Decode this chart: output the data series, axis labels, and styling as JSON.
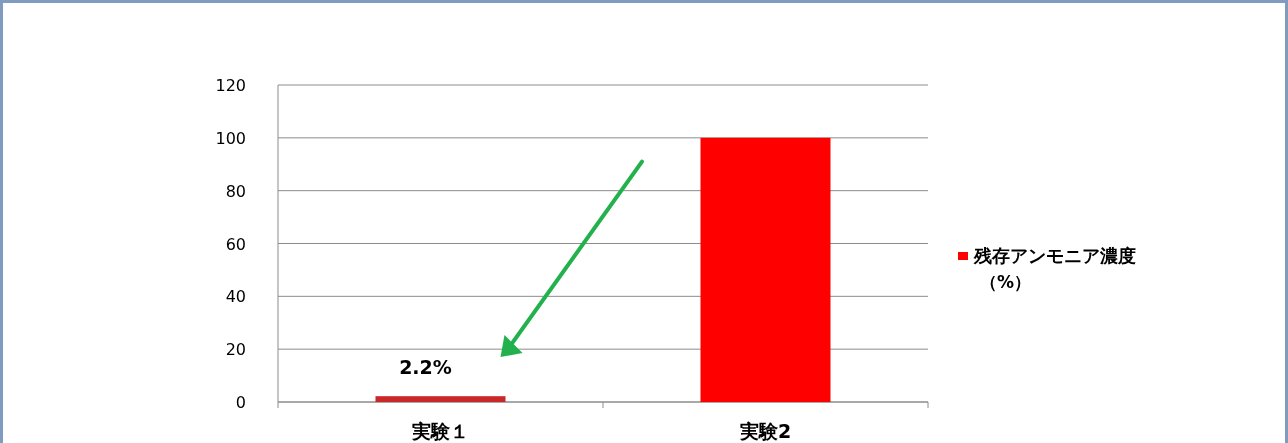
{
  "chart_data": {
    "type": "bar",
    "categories": [
      "実験１",
      "実験2"
    ],
    "series": [
      {
        "name": "残存アンモニア濃度（%）",
        "color": "#ff0000",
        "colors": [
          "#c8282a",
          "#ff0000"
        ],
        "values": [
          2.2,
          100
        ],
        "value_labels": [
          "2.2%",
          null
        ]
      }
    ],
    "ylim": [
      0,
      120
    ],
    "yticks": [
      0,
      20,
      40,
      60,
      80,
      100,
      120
    ],
    "grid": "y",
    "legend": "right"
  }
}
